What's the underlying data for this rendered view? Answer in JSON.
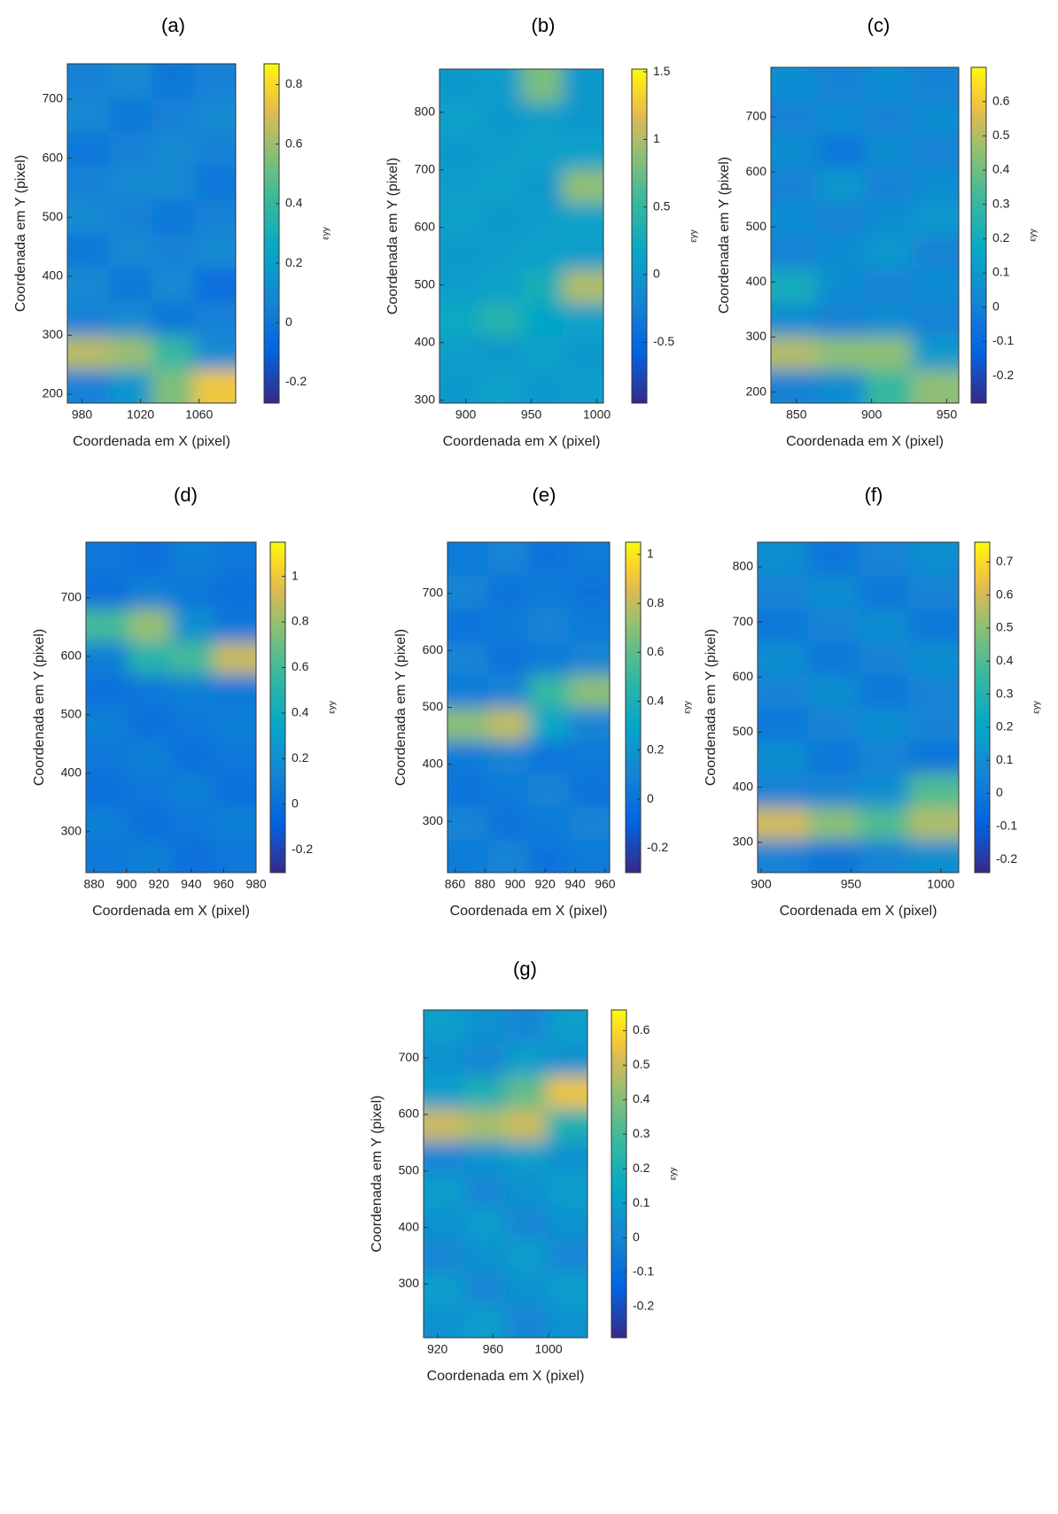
{
  "chart_data": [
    {
      "type": "heatmap",
      "title": "(a)",
      "x_label": "Coordenada em X (pixel)",
      "y_label": "Coordenada em Y (pixel)",
      "colorbar_label": "εyy",
      "xlim": [
        970,
        1085
      ],
      "ylim": [
        185,
        760
      ],
      "xticks": [
        980,
        1020,
        1060
      ],
      "yticks": [
        200,
        300,
        400,
        500,
        600,
        700
      ],
      "clim": [
        -0.27,
        0.87
      ],
      "cticks": [
        -0.2,
        0,
        0.2,
        0.4,
        0.6,
        0.8
      ],
      "z": [
        [
          0.05,
          0.15,
          0.55,
          0.75
        ],
        [
          0.65,
          0.6,
          0.4,
          0.1
        ],
        [
          0.05,
          0.1,
          0.0,
          0.05
        ],
        [
          0.1,
          0.0,
          0.1,
          -0.05
        ],
        [
          0.0,
          0.1,
          0.05,
          0.1
        ],
        [
          0.1,
          0.05,
          0.0,
          0.05
        ],
        [
          0.05,
          0.1,
          0.1,
          0.0
        ],
        [
          0.0,
          0.05,
          0.1,
          0.05
        ],
        [
          0.1,
          0.0,
          0.05,
          0.1
        ],
        [
          0.05,
          0.1,
          0.0,
          0.05
        ]
      ]
    },
    {
      "type": "heatmap",
      "title": "(b)",
      "x_label": "Coordenada em X (pixel)",
      "y_label": "Coordenada em Y (pixel)",
      "colorbar_label": "εyy",
      "xlim": [
        880,
        1005
      ],
      "ylim": [
        295,
        875
      ],
      "xticks": [
        900,
        950,
        1000
      ],
      "yticks": [
        300,
        400,
        500,
        600,
        700,
        800
      ],
      "clim": [
        -0.95,
        1.52
      ],
      "cticks": [
        -0.5,
        0,
        0.5,
        1,
        1.5
      ],
      "z": [
        [
          0,
          0.1,
          0,
          0.05
        ],
        [
          0.05,
          0,
          0.1,
          0
        ],
        [
          0.2,
          0.4,
          0.15,
          0.1
        ],
        [
          0.05,
          0.1,
          0.3,
          1.0
        ],
        [
          0,
          0.05,
          0.1,
          0.05
        ],
        [
          0.1,
          0,
          0.05,
          0.1
        ],
        [
          0.05,
          0.1,
          0,
          0.9
        ],
        [
          0,
          0.05,
          0.1,
          0.1
        ],
        [
          0.1,
          0,
          0.05,
          0
        ],
        [
          0,
          0.05,
          0.8,
          0
        ]
      ]
    },
    {
      "type": "heatmap",
      "title": "(c)",
      "x_label": "Coordenada em X (pixel)",
      "y_label": "Coordenada em Y (pixel)",
      "colorbar_label": "εyy",
      "xlim": [
        833,
        958
      ],
      "ylim": [
        180,
        790
      ],
      "xticks": [
        850,
        900,
        950
      ],
      "yticks": [
        200,
        300,
        400,
        500,
        600,
        700
      ],
      "clim": [
        -0.28,
        0.7
      ],
      "cticks": [
        -0.2,
        -0.1,
        0,
        0.1,
        0.2,
        0.3,
        0.4,
        0.5,
        0.6
      ],
      "z": [
        [
          0.0,
          0.05,
          0.3,
          0.45
        ],
        [
          0.5,
          0.45,
          0.45,
          0.1
        ],
        [
          0.05,
          0.0,
          0.05,
          0.0
        ],
        [
          0.2,
          0.05,
          0.0,
          0.05
        ],
        [
          0.0,
          0.05,
          0.1,
          0.0
        ],
        [
          0.05,
          0.0,
          0.05,
          0.1
        ],
        [
          0.0,
          0.1,
          0.0,
          0.05
        ],
        [
          0.05,
          -0.05,
          0.05,
          0.0
        ],
        [
          0.0,
          0.05,
          0.0,
          0.05
        ],
        [
          0.05,
          0.0,
          0.05,
          0.0
        ]
      ]
    },
    {
      "type": "heatmap",
      "title": "(d)",
      "x_label": "Coordenada em X (pixel)",
      "y_label": "Coordenada em Y (pixel)",
      "colorbar_label": "εyy",
      "xlim": [
        875,
        980
      ],
      "ylim": [
        230,
        795
      ],
      "xticks": [
        880,
        900,
        920,
        940,
        960,
        980
      ],
      "yticks": [
        300,
        400,
        500,
        600,
        700
      ],
      "clim": [
        -0.3,
        1.15
      ],
      "cticks": [
        -0.2,
        0,
        0.2,
        0.4,
        0.6,
        0.8,
        1
      ],
      "z": [
        [
          0.05,
          0.1,
          0,
          0.05
        ],
        [
          0.1,
          0,
          0.05,
          0.1
        ],
        [
          0.0,
          0.05,
          0.1,
          0
        ],
        [
          0.05,
          0.1,
          0,
          0.05
        ],
        [
          0.1,
          0,
          0.05,
          0.1
        ],
        [
          0,
          0.05,
          0.1,
          0.05
        ],
        [
          0.1,
          0.5,
          0.6,
          0.9
        ],
        [
          0.6,
          0.8,
          0.2,
          0.05
        ],
        [
          0,
          0.1,
          0.05,
          0
        ],
        [
          0.05,
          0,
          0.1,
          0.05
        ]
      ]
    },
    {
      "type": "heatmap",
      "title": "(e)",
      "x_label": "Coordenada em X (pixel)",
      "y_label": "Coordenada em Y (pixel)",
      "colorbar_label": "εyy",
      "xlim": [
        855,
        963
      ],
      "ylim": [
        210,
        790
      ],
      "xticks": [
        860,
        880,
        900,
        920,
        940,
        960
      ],
      "yticks": [
        300,
        400,
        500,
        600,
        700
      ],
      "clim": [
        -0.3,
        1.05
      ],
      "cticks": [
        -0.2,
        0,
        0.2,
        0.4,
        0.6,
        0.8,
        1
      ],
      "z": [
        [
          0.05,
          0.1,
          0,
          0.05
        ],
        [
          0.1,
          0,
          0.05,
          0.1
        ],
        [
          0,
          0.05,
          0.1,
          0
        ],
        [
          0.05,
          0.1,
          0,
          0.05
        ],
        [
          0.7,
          0.8,
          0.3,
          0.1
        ],
        [
          0.05,
          0.1,
          0.5,
          0.7
        ],
        [
          0.1,
          0,
          0.05,
          0.1
        ],
        [
          0,
          0.05,
          0.1,
          0.05
        ],
        [
          0.1,
          0,
          0.05,
          0
        ],
        [
          0.05,
          0.1,
          0,
          0.05
        ]
      ]
    },
    {
      "type": "heatmap",
      "title": "(f)",
      "x_label": "Coordenada em X (pixel)",
      "y_label": "Coordenada em Y (pixel)",
      "colorbar_label": "εyy",
      "xlim": [
        898,
        1010
      ],
      "ylim": [
        245,
        845
      ],
      "xticks": [
        900,
        950,
        1000
      ],
      "yticks": [
        300,
        400,
        500,
        600,
        700,
        800
      ],
      "clim": [
        -0.24,
        0.76
      ],
      "cticks": [
        -0.2,
        -0.1,
        0,
        0.1,
        0.2,
        0.3,
        0.4,
        0.5,
        0.6,
        0.7
      ],
      "z": [
        [
          0.05,
          0,
          0.05,
          0.1
        ],
        [
          0.6,
          0.5,
          0.4,
          0.55
        ],
        [
          0.05,
          0.05,
          0.1,
          0.4
        ],
        [
          0.1,
          0,
          0.05,
          0
        ],
        [
          0,
          0.05,
          0.1,
          0.05
        ],
        [
          0.05,
          0.1,
          0,
          0.05
        ],
        [
          0.1,
          0,
          0.05,
          0.1
        ],
        [
          0,
          0.05,
          0.1,
          0
        ],
        [
          0.05,
          0.1,
          0,
          0.05
        ],
        [
          0.1,
          0,
          0.05,
          0.1
        ]
      ]
    },
    {
      "type": "heatmap",
      "title": "(g)",
      "x_label": "Coordenada em X (pixel)",
      "y_label": "Coordenada em Y (pixel)",
      "colorbar_label": "εyy",
      "xlim": [
        910,
        1028
      ],
      "ylim": [
        205,
        785
      ],
      "xticks": [
        920,
        960,
        1000
      ],
      "yticks": [
        300,
        400,
        500,
        600,
        700
      ],
      "clim": [
        -0.29,
        0.66
      ],
      "cticks": [
        -0.2,
        -0.1,
        0,
        0.1,
        0.2,
        0.3,
        0.4,
        0.5,
        0.6
      ],
      "z": [
        [
          0.05,
          0.1,
          0,
          0.05
        ],
        [
          0.1,
          0,
          0.05,
          0.1
        ],
        [
          0,
          0.05,
          0.1,
          0
        ],
        [
          0.05,
          0.1,
          0,
          0.05
        ],
        [
          0.1,
          0,
          0.05,
          0.1
        ],
        [
          0,
          0.05,
          0.1,
          0.05
        ],
        [
          0.5,
          0.45,
          0.5,
          0.2
        ],
        [
          0.1,
          0.2,
          0.35,
          0.55
        ],
        [
          0.05,
          0,
          0.1,
          0.05
        ],
        [
          0.1,
          0.05,
          0,
          0.1
        ]
      ]
    }
  ]
}
